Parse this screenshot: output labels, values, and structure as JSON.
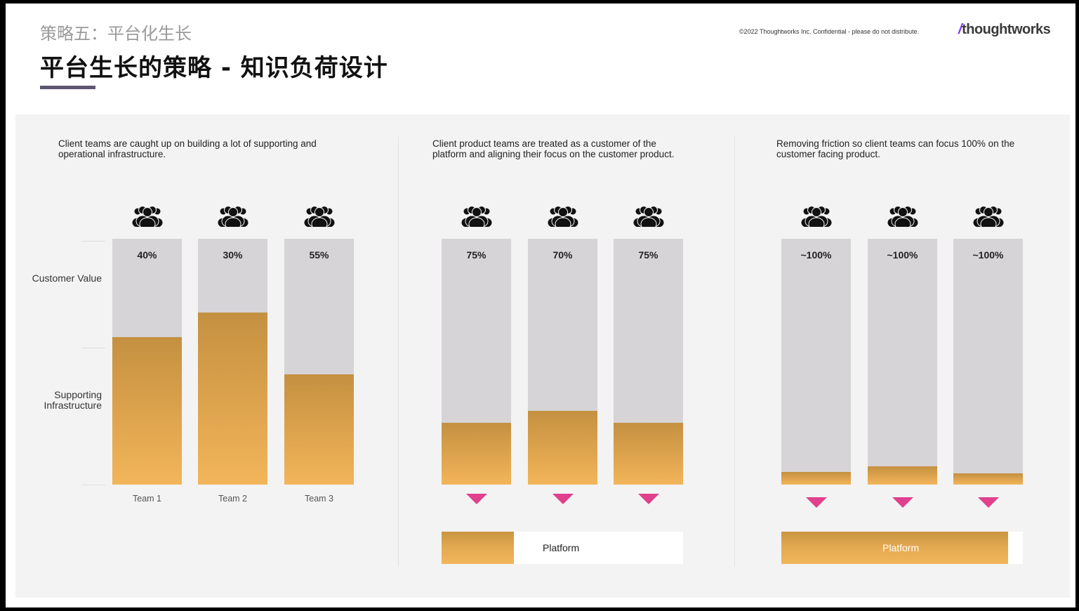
{
  "header": {
    "subtitle": "策略五：平台化生长",
    "title": "平台生长的策略 - 知识负荷设计",
    "copyright": "©2022 Thoughtworks Inc.  Confidential - please do not distribute.",
    "logo_slash": "/",
    "logo_text": "thoughtworks"
  },
  "axis": {
    "customer_value": "Customer Value",
    "supporting_infrastructure": "Supporting Infrastructure"
  },
  "sections": [
    {
      "caption": "Client teams are caught up on building a lot of supporting and operational infrastructure.",
      "bars": [
        {
          "label": "40%",
          "customer_value_fraction": 0.4,
          "team": "Team 1"
        },
        {
          "label": "30%",
          "customer_value_fraction": 0.3,
          "team": "Team 2"
        },
        {
          "label": "55%",
          "customer_value_fraction": 0.55,
          "team": "Team 3"
        }
      ]
    },
    {
      "caption": "Client product teams are treated as a customer of the platform and aligning their focus on the customer product.",
      "bars": [
        {
          "label": "75%",
          "customer_value_fraction": 0.75
        },
        {
          "label": "70%",
          "customer_value_fraction": 0.7
        },
        {
          "label": "75%",
          "customer_value_fraction": 0.75
        }
      ],
      "platform": {
        "label": "Platform",
        "fill_fraction": 0.3
      }
    },
    {
      "caption": "Removing friction so client teams can focus 100% on the customer facing product.",
      "bars": [
        {
          "label": "~100%",
          "customer_value_fraction": 0.95
        },
        {
          "label": "~100%",
          "customer_value_fraction": 0.925
        },
        {
          "label": "~100%",
          "customer_value_fraction": 0.955
        }
      ],
      "platform": {
        "label": "Platform",
        "fill_fraction": 0.94
      }
    }
  ],
  "colors": {
    "accent_bar": "#5e5672",
    "infrastructure": "#e4aa52",
    "customer_value": "#d6d4d6",
    "arrow": "#e0408c",
    "panel_bg": "#f3f3f3"
  },
  "icons": {
    "team": "people-group-icon",
    "arrow": "triangle-down-icon"
  }
}
